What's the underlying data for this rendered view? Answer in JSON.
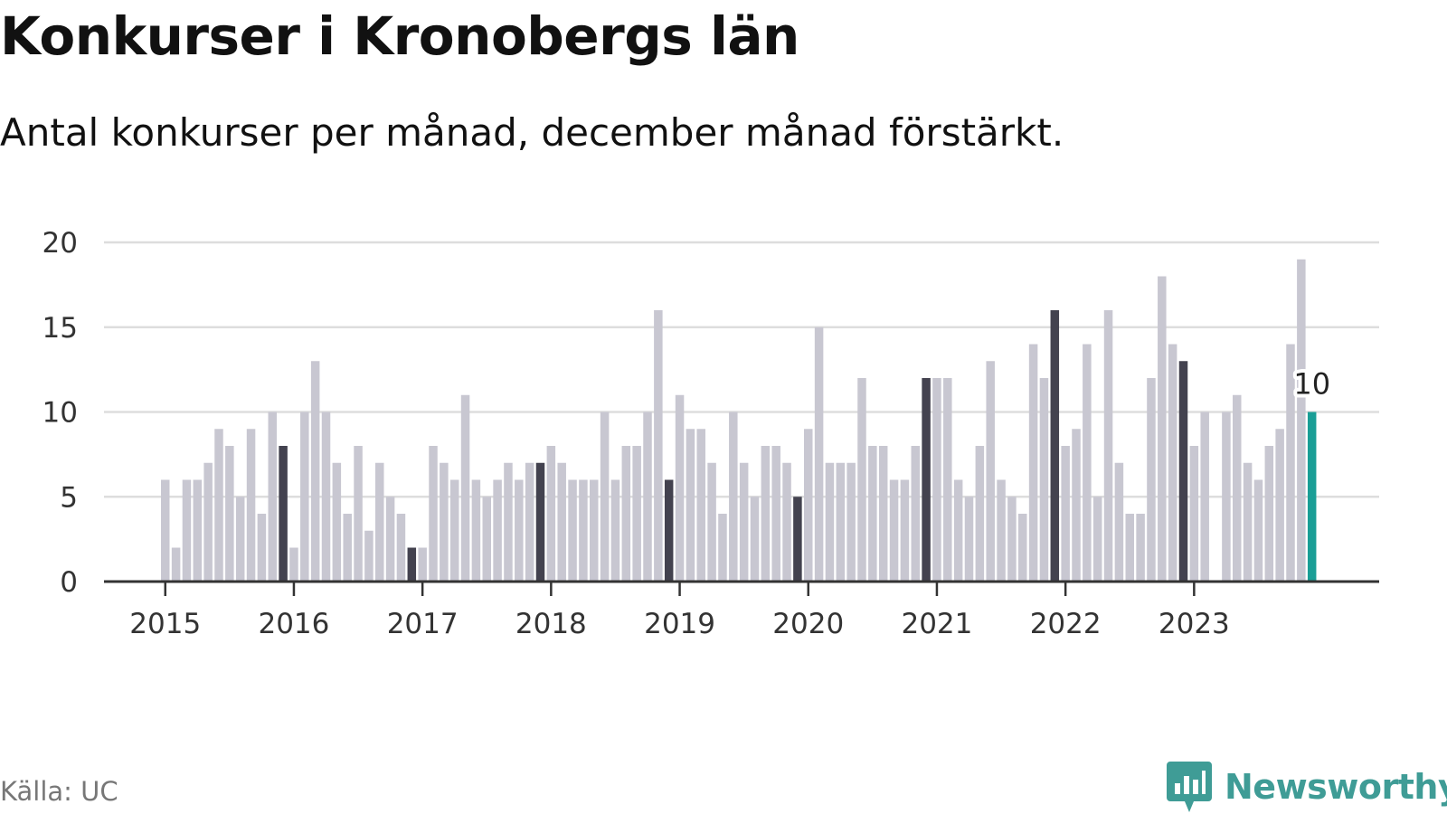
{
  "title": "Konkurser i Kronobergs län",
  "subtitle": "Antal konkurser per månad, december månad förstärkt.",
  "source": "Källa: UC",
  "brand": {
    "name": "Newsworthy",
    "logo_icon": "bar-chart-speech-bubble-icon"
  },
  "colors": {
    "bar": "#c8c7d1",
    "december_bar": "#43424f",
    "latest_bar": "#1a9e96",
    "gridline": "#dddddd",
    "axis": "#333333",
    "brand": "#3f9c96"
  },
  "chart_data": {
    "type": "bar",
    "title": "Konkurser i Kronobergs län",
    "subtitle": "Antal konkurser per månad, december månad förstärkt.",
    "xlabel": "",
    "ylabel": "",
    "ylim": [
      0,
      20
    ],
    "yticks": [
      0,
      5,
      10,
      15,
      20
    ],
    "x_tick_labels": [
      "2015",
      "2016",
      "2017",
      "2018",
      "2019",
      "2020",
      "2021",
      "2022",
      "2023"
    ],
    "grid": true,
    "legend": "none",
    "start": "2015-01",
    "end": "2023-12",
    "series": [
      {
        "name": "",
        "values": [
          6,
          2,
          6,
          6,
          7,
          9,
          8,
          5,
          9,
          4,
          10,
          8,
          2,
          10,
          13,
          10,
          7,
          4,
          8,
          3,
          7,
          5,
          4,
          2,
          2,
          8,
          7,
          6,
          11,
          6,
          5,
          6,
          7,
          6,
          7,
          7,
          8,
          7,
          6,
          6,
          6,
          10,
          6,
          8,
          8,
          10,
          16,
          6,
          11,
          9,
          9,
          7,
          4,
          10,
          7,
          5,
          8,
          8,
          7,
          5,
          9,
          15,
          7,
          7,
          7,
          12,
          8,
          8,
          6,
          6,
          8,
          12,
          12,
          12,
          6,
          5,
          8,
          13,
          6,
          5,
          4,
          14,
          12,
          16,
          8,
          9,
          14,
          5,
          16,
          7,
          4,
          4,
          12,
          18,
          14,
          13,
          8,
          10,
          0,
          10,
          11,
          7,
          6,
          8,
          9,
          14,
          19,
          10
        ]
      }
    ],
    "highlight": "december",
    "annotations": [
      {
        "month": "2023-12",
        "text": "10"
      }
    ]
  }
}
